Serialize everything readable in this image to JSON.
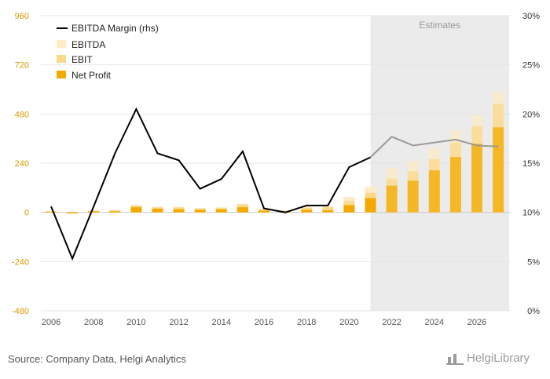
{
  "footer": {
    "source": "Source: Company Data, Helgi Analytics"
  },
  "logo": {
    "text": "HelgiLibrary"
  },
  "chart_data": {
    "type": "bar",
    "estimates_label": "Estimates",
    "estimates_from": 2021,
    "years": [
      2006,
      2007,
      2008,
      2009,
      2010,
      2011,
      2012,
      2013,
      2014,
      2015,
      2016,
      2017,
      2018,
      2019,
      2020,
      2021,
      2022,
      2023,
      2024,
      2025,
      2026,
      2027
    ],
    "y_left": {
      "min": -480,
      "max": 960,
      "ticks": [
        960,
        720,
        480,
        240,
        0,
        -240,
        -480
      ]
    },
    "y_right": {
      "min": 0,
      "max": 30,
      "ticks": [
        "30%",
        "25%",
        "20%",
        "15%",
        "10%",
        "5%",
        "0%"
      ]
    },
    "x_ticks": [
      "2006",
      "2008",
      "2010",
      "2012",
      "2014",
      "2016",
      "2018",
      "2020",
      "2022",
      "2024",
      "2026"
    ],
    "series": [
      {
        "name": "EBITDA Margin (rhs)",
        "kind": "line",
        "axis": "right",
        "values": [
          10.6,
          5.3,
          10.6,
          16.0,
          20.5,
          16.0,
          15.3,
          12.4,
          13.4,
          16.2,
          10.4,
          10.0,
          10.7,
          10.7,
          14.6,
          15.6,
          17.7,
          16.8,
          17.1,
          17.4,
          16.8,
          16.7
        ]
      },
      {
        "name": "EBITDA",
        "kind": "bar",
        "axis": "left",
        "color": "#fcebc6",
        "values": [
          7,
          3,
          10,
          12,
          38,
          28,
          28,
          22,
          25,
          43,
          20,
          10,
          28,
          32,
          75,
          125,
          215,
          250,
          315,
          400,
          475,
          590
        ]
      },
      {
        "name": "EBIT",
        "kind": "bar",
        "axis": "left",
        "color": "#fbd88a",
        "values": [
          5,
          2,
          8,
          10,
          32,
          24,
          24,
          18,
          21,
          38,
          15,
          8,
          22,
          25,
          55,
          95,
          165,
          200,
          260,
          340,
          420,
          530
        ]
      },
      {
        "name": "Net Profit",
        "kind": "bar",
        "axis": "left",
        "color": "#f2a900",
        "values": [
          3,
          -5,
          5,
          5,
          25,
          18,
          15,
          12,
          15,
          25,
          8,
          3,
          12,
          10,
          35,
          70,
          130,
          155,
          205,
          270,
          335,
          415
        ]
      }
    ],
    "colors": {
      "left_axis": "#d89a00",
      "actual_line": "#000000",
      "estimate_line": "#999999",
      "estimate_band": "#ebebeb"
    }
  }
}
